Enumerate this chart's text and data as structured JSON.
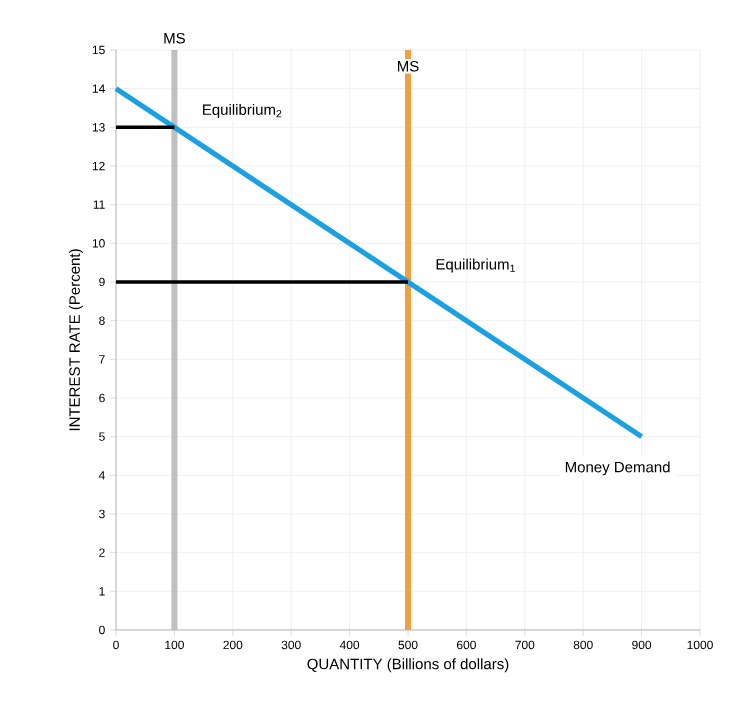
{
  "chart_data": {
    "type": "line",
    "xlabel": "QUANTITY (Billions of dollars)",
    "ylabel": "INTEREST RATE (Percent)",
    "xlim": [
      0,
      1000
    ],
    "ylim": [
      0,
      15
    ],
    "xticks": [
      0,
      100,
      200,
      300,
      400,
      500,
      600,
      700,
      800,
      900,
      1000
    ],
    "yticks": [
      0,
      1,
      2,
      3,
      4,
      5,
      6,
      7,
      8,
      9,
      10,
      11,
      12,
      13,
      14,
      15
    ],
    "grid": true,
    "marker": "none",
    "line_style": "solid",
    "series": [
      {
        "name": "Money Demand",
        "color": "#1ba1e2",
        "x": [
          0,
          900
        ],
        "values": [
          14,
          5
        ]
      },
      {
        "color": "#000000",
        "x": [
          0,
          100
        ],
        "values": [
          13,
          13
        ]
      },
      {
        "color": "#000000",
        "x": [
          0,
          500
        ],
        "values": [
          9,
          9
        ]
      }
    ],
    "ref_lines": [
      {
        "axis": "x",
        "value": 100,
        "label": "MS",
        "color": "#c0c0c0"
      },
      {
        "axis": "x",
        "value": 500,
        "label": "MS",
        "color": "#f0a040"
      }
    ],
    "annotations": [
      {
        "text": "Equilibrium$_{2}$",
        "x": 100,
        "y": 13
      },
      {
        "text": "Equilibrium$_{1}$",
        "x": 500,
        "y": 9
      }
    ]
  }
}
